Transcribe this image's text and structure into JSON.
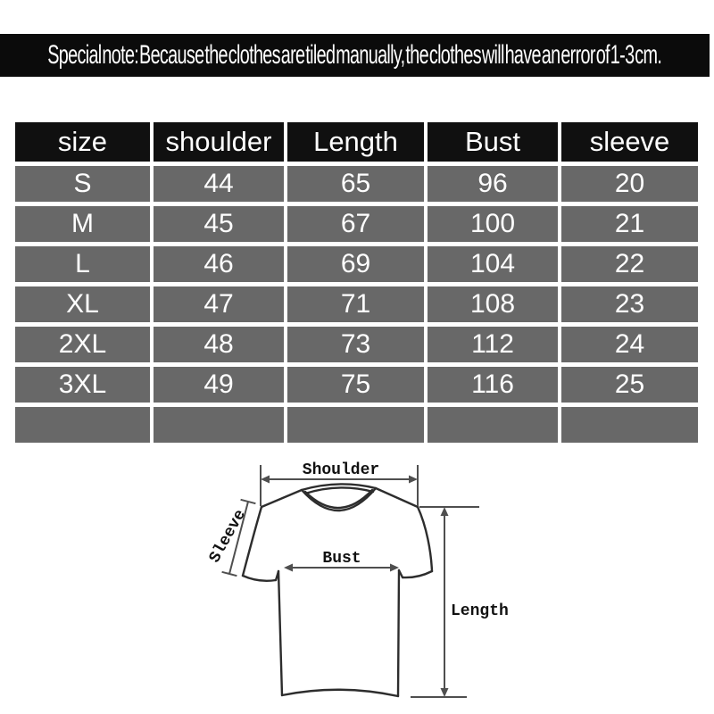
{
  "banner": {
    "text": "Special note: Because the clothes are tiled manually, the clothes will have an error of 1-3 cm.",
    "background": "#0b0b0b",
    "text_color": "#ffffff"
  },
  "size_table": {
    "headers": [
      "size",
      "shoulder",
      "Length",
      "Bust",
      "sleeve"
    ],
    "rows": [
      [
        "S",
        "44",
        "65",
        "96",
        "20"
      ],
      [
        "M",
        "45",
        "67",
        "100",
        "21"
      ],
      [
        "L",
        "46",
        "69",
        "104",
        "22"
      ],
      [
        "XL",
        "47",
        "71",
        "108",
        "23"
      ],
      [
        "2XL",
        "48",
        "73",
        "112",
        "24"
      ],
      [
        "3XL",
        "49",
        "75",
        "116",
        "25"
      ],
      [
        "",
        "",
        "",
        "",
        ""
      ]
    ],
    "header_background": "#101010",
    "cell_background": "#686868",
    "text_color": "#ffffff"
  },
  "diagram": {
    "labels": {
      "shoulder": "Shoulder",
      "sleeve": "Sleeve",
      "bust": "Bust",
      "length": "Length"
    },
    "outline_color": "#2d2d2d",
    "measure_line_color": "#4f4f4f",
    "label_color": "#111111"
  },
  "chart_data": {
    "type": "table",
    "columns": [
      "size",
      "shoulder",
      "Length",
      "Bust",
      "sleeve"
    ],
    "rows": [
      [
        "S",
        44,
        65,
        96,
        20
      ],
      [
        "M",
        45,
        67,
        100,
        21
      ],
      [
        "L",
        46,
        69,
        104,
        22
      ],
      [
        "XL",
        47,
        71,
        108,
        23
      ],
      [
        "2XL",
        48,
        73,
        112,
        24
      ],
      [
        "3XL",
        49,
        75,
        116,
        25
      ]
    ],
    "note": "Special note: Because the clothes are tiled manually, the clothes will have an error of 1-3 cm."
  }
}
